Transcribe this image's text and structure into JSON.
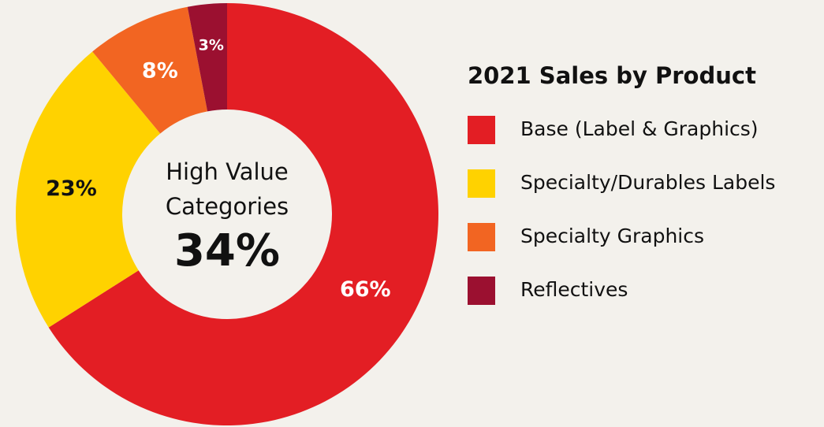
{
  "chart_data": {
    "type": "donut",
    "title": "2021 Sales by Product",
    "categories": [
      "Base (Label & Graphics)",
      "Specialty/Durables Labels",
      "Specialty Graphics",
      "Reflectives"
    ],
    "values": [
      66,
      23,
      8,
      3
    ],
    "value_labels": [
      "66%",
      "23%",
      "8%",
      "3%"
    ],
    "colors": [
      "#e31e24",
      "#ffd200",
      "#f26522",
      "#9b1030"
    ],
    "center_label": "High Value Categories",
    "center_text": "34%",
    "legend": "right"
  }
}
